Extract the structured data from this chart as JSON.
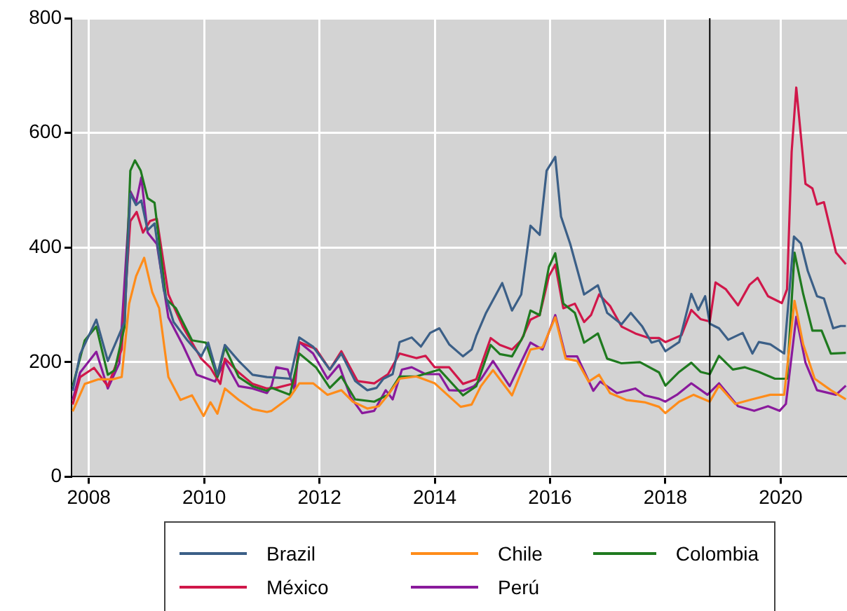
{
  "chart_data": {
    "type": "line",
    "xlim": [
      2007.7,
      2021.15
    ],
    "xticks": [
      2008,
      2010,
      2012,
      2014,
      2016,
      2018,
      2020
    ],
    "ylim": [
      0,
      800
    ],
    "yticks": [
      0,
      200,
      400,
      600,
      800
    ],
    "grid": true,
    "legend": "bottom",
    "marker": "none",
    "line_style": "solid",
    "ref_lines": [
      {
        "axis": "x",
        "value": 2018.77,
        "color": "#000000"
      }
    ],
    "series": [
      {
        "name": "Brazil",
        "color": "#3b5f87",
        "x": [
          2007.72,
          2007.85,
          2008.13,
          2008.33,
          2008.45,
          2008.62,
          2008.72,
          2008.82,
          2008.91,
          2009.02,
          2009.14,
          2009.3,
          2009.47,
          2009.71,
          2009.95,
          2010.07,
          2010.23,
          2010.36,
          2010.6,
          2010.84,
          2011.09,
          2011.25,
          2011.49,
          2011.65,
          2011.89,
          2012.18,
          2012.38,
          2012.62,
          2012.83,
          2012.99,
          2013.11,
          2013.27,
          2013.39,
          2013.6,
          2013.76,
          2013.92,
          2014.08,
          2014.25,
          2014.49,
          2014.64,
          2014.72,
          2014.89,
          2015.17,
          2015.34,
          2015.5,
          2015.66,
          2015.82,
          2015.94,
          2016.09,
          2016.19,
          2016.35,
          2016.59,
          2016.83,
          2016.99,
          2017.24,
          2017.4,
          2017.6,
          2017.76,
          2017.89,
          2018.0,
          2018.24,
          2018.45,
          2018.57,
          2018.69,
          2018.77,
          2018.93,
          2019.09,
          2019.34,
          2019.51,
          2019.62,
          2019.82,
          2020.06,
          2020.23,
          2020.35,
          2020.47,
          2020.63,
          2020.75,
          2020.91,
          2021.04,
          2021.13
        ],
        "values": [
          150,
          214,
          274,
          202,
          230,
          270,
          494,
          474,
          482,
          430,
          442,
          326,
          270,
          238,
          210,
          234,
          178,
          230,
          202,
          178,
          174,
          173,
          171,
          243,
          227,
          187,
          215,
          167,
          151,
          155,
          171,
          179,
          235,
          243,
          227,
          251,
          259,
          231,
          210,
          222,
          246,
          286,
          338,
          290,
          318,
          438,
          422,
          534,
          558,
          454,
          406,
          318,
          334,
          286,
          266,
          286,
          262,
          234,
          238,
          219,
          235,
          319,
          291,
          315,
          267,
          259,
          239,
          251,
          215,
          235,
          231,
          215,
          419,
          407,
          359,
          315,
          311,
          259,
          263,
          263
        ]
      },
      {
        "name": "Chile",
        "color": "#ff8c1a",
        "x": [
          2007.72,
          2007.93,
          2008.17,
          2008.41,
          2008.57,
          2008.7,
          2008.82,
          2008.96,
          2009.1,
          2009.22,
          2009.38,
          2009.59,
          2009.79,
          2009.99,
          2010.11,
          2010.23,
          2010.36,
          2010.6,
          2010.84,
          2011.09,
          2011.17,
          2011.49,
          2011.65,
          2011.89,
          2012.14,
          2012.38,
          2012.58,
          2012.83,
          2013.03,
          2013.19,
          2013.39,
          2013.68,
          2014.0,
          2014.45,
          2014.64,
          2014.8,
          2015.01,
          2015.34,
          2015.66,
          2015.87,
          2016.09,
          2016.27,
          2016.47,
          2016.67,
          2016.85,
          2017.04,
          2017.32,
          2017.64,
          2017.89,
          2018.0,
          2018.24,
          2018.49,
          2018.77,
          2018.93,
          2019.21,
          2019.5,
          2019.82,
          2020.06,
          2020.24,
          2020.39,
          2020.59,
          2020.87,
          2021.13
        ],
        "values": [
          114,
          162,
          170,
          170,
          174,
          302,
          350,
          382,
          322,
          294,
          174,
          134,
          142,
          106,
          130,
          110,
          154,
          134,
          118,
          113,
          115,
          139,
          163,
          163,
          143,
          151,
          131,
          119,
          123,
          143,
          171,
          175,
          163,
          122,
          126,
          158,
          186,
          142,
          222,
          226,
          278,
          206,
          202,
          166,
          178,
          146,
          134,
          130,
          122,
          111,
          131,
          143,
          131,
          159,
          127,
          135,
          143,
          143,
          307,
          231,
          171,
          151,
          135
        ]
      },
      {
        "name": "Colombia",
        "color": "#1f7a1f",
        "x": [
          2007.72,
          2007.93,
          2008.13,
          2008.33,
          2008.45,
          2008.62,
          2008.72,
          2008.8,
          2008.9,
          2009.02,
          2009.14,
          2009.34,
          2009.51,
          2009.79,
          2010.03,
          2010.23,
          2010.36,
          2010.6,
          2010.84,
          2011.09,
          2011.17,
          2011.49,
          2011.65,
          2011.94,
          2012.18,
          2012.38,
          2012.62,
          2012.95,
          2013.19,
          2013.39,
          2013.68,
          2014.08,
          2014.49,
          2014.72,
          2014.97,
          2015.13,
          2015.34,
          2015.54,
          2015.66,
          2015.82,
          2015.98,
          2016.09,
          2016.23,
          2016.43,
          2016.59,
          2016.83,
          2016.99,
          2017.24,
          2017.56,
          2017.89,
          2018.0,
          2018.24,
          2018.45,
          2018.61,
          2018.77,
          2018.93,
          2019.17,
          2019.38,
          2019.62,
          2019.9,
          2020.11,
          2020.24,
          2020.39,
          2020.55,
          2020.71,
          2020.87,
          2021.13
        ],
        "values": [
          158,
          238,
          262,
          178,
          186,
          262,
          534,
          552,
          534,
          486,
          478,
          310,
          294,
          238,
          234,
          174,
          226,
          174,
          158,
          150,
          155,
          143,
          215,
          191,
          155,
          175,
          135,
          131,
          143,
          175,
          175,
          187,
          142,
          158,
          230,
          214,
          210,
          246,
          290,
          282,
          366,
          390,
          302,
          286,
          234,
          250,
          206,
          198,
          200,
          182,
          159,
          183,
          199,
          183,
          179,
          211,
          187,
          191,
          183,
          171,
          171,
          391,
          319,
          255,
          255,
          215,
          216
        ]
      },
      {
        "name": "México",
        "color": "#d0174a",
        "x": [
          2007.72,
          2007.85,
          2008.09,
          2008.33,
          2008.57,
          2008.72,
          2008.83,
          2008.94,
          2009.06,
          2009.18,
          2009.38,
          2009.63,
          2009.95,
          2010.11,
          2010.28,
          2010.36,
          2010.6,
          2010.84,
          2011.09,
          2011.25,
          2011.57,
          2011.65,
          2011.94,
          2012.18,
          2012.38,
          2012.66,
          2012.95,
          2013.19,
          2013.39,
          2013.68,
          2013.84,
          2014.0,
          2014.25,
          2014.49,
          2014.72,
          2014.97,
          2015.13,
          2015.34,
          2015.5,
          2015.66,
          2015.82,
          2015.98,
          2016.09,
          2016.23,
          2016.43,
          2016.59,
          2016.71,
          2016.85,
          2017.04,
          2017.24,
          2017.48,
          2017.72,
          2017.89,
          2018.0,
          2018.28,
          2018.45,
          2018.61,
          2018.77,
          2018.87,
          2019.05,
          2019.26,
          2019.46,
          2019.6,
          2019.78,
          2020.02,
          2020.11,
          2020.19,
          2020.27,
          2020.43,
          2020.55,
          2020.63,
          2020.75,
          2020.96,
          2021.13
        ],
        "values": [
          126,
          174,
          190,
          158,
          222,
          446,
          462,
          426,
          446,
          450,
          318,
          262,
          206,
          190,
          162,
          206,
          182,
          162,
          154,
          155,
          163,
          235,
          223,
          187,
          219,
          167,
          163,
          179,
          215,
          207,
          211,
          191,
          191,
          162,
          170,
          242,
          230,
          222,
          238,
          274,
          282,
          350,
          370,
          294,
          302,
          270,
          282,
          318,
          298,
          262,
          250,
          242,
          242,
          235,
          247,
          291,
          275,
          271,
          339,
          327,
          299,
          335,
          347,
          315,
          303,
          327,
          567,
          679,
          511,
          503,
          475,
          479,
          391,
          371
        ]
      },
      {
        "name": "Perú",
        "color": "#8a1a9c",
        "x": [
          2007.72,
          2007.85,
          2008.13,
          2008.33,
          2008.53,
          2008.72,
          2008.82,
          2008.91,
          2009.02,
          2009.18,
          2009.38,
          2009.63,
          2009.87,
          2010.19,
          2010.36,
          2010.6,
          2010.84,
          2011.09,
          2011.17,
          2011.25,
          2011.45,
          2011.57,
          2011.65,
          2011.89,
          2012.14,
          2012.34,
          2012.54,
          2012.74,
          2012.95,
          2013.15,
          2013.27,
          2013.43,
          2013.6,
          2013.84,
          2014.08,
          2014.25,
          2014.49,
          2014.68,
          2014.8,
          2015.01,
          2015.3,
          2015.66,
          2015.87,
          2016.09,
          2016.27,
          2016.47,
          2016.75,
          2016.87,
          2017.16,
          2017.48,
          2017.64,
          2017.89,
          2018.0,
          2018.2,
          2018.45,
          2018.73,
          2018.93,
          2019.26,
          2019.54,
          2019.78,
          2019.98,
          2020.09,
          2020.27,
          2020.43,
          2020.63,
          2020.96,
          2021.13
        ],
        "values": [
          134,
          182,
          218,
          154,
          198,
          498,
          478,
          522,
          426,
          406,
          278,
          230,
          178,
          166,
          202,
          158,
          154,
          146,
          159,
          191,
          187,
          151,
          235,
          215,
          171,
          195,
          139,
          111,
          115,
          151,
          135,
          187,
          191,
          179,
          179,
          151,
          150,
          158,
          170,
          202,
          158,
          234,
          222,
          282,
          210,
          210,
          150,
          166,
          146,
          154,
          142,
          136,
          131,
          143,
          163,
          143,
          163,
          123,
          115,
          123,
          115,
          127,
          279,
          199,
          151,
          143,
          159
        ]
      }
    ]
  }
}
